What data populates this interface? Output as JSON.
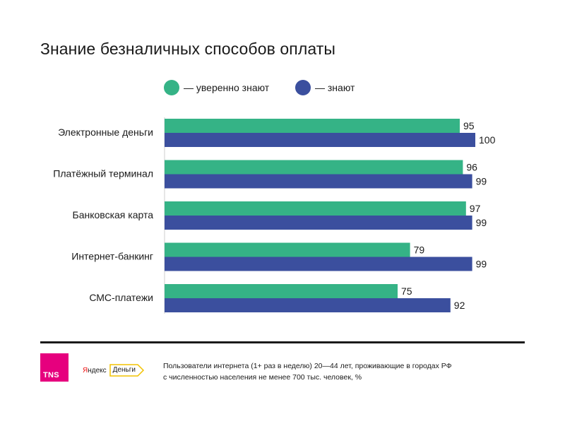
{
  "title": "Знание безналичных способов оплаты",
  "legend": [
    {
      "label": "— уверенно знают",
      "color": "#35b386"
    },
    {
      "label": "— знают",
      "color": "#3b4f9e"
    }
  ],
  "chart_data": {
    "type": "bar",
    "orientation": "horizontal",
    "title": "Знание безналичных способов оплаты",
    "categories": [
      "Электронные деньги",
      "Платёжный терминал",
      "Банковская карта",
      "Интернет-банкинг",
      "СМС-платежи"
    ],
    "series": [
      {
        "name": "— уверенно знают",
        "values": [
          95,
          96,
          97,
          79,
          75
        ],
        "color": "#35b386"
      },
      {
        "name": "— знают",
        "values": [
          100,
          99,
          99,
          99,
          92
        ],
        "color": "#3b4f9e"
      }
    ],
    "xlim": [
      0,
      100
    ],
    "grid": false,
    "legend_position": "top"
  },
  "footer": {
    "tns_logo": "TNS",
    "yandex_logo": "Яндекс",
    "dengi_logo": "Деньги",
    "note_line1": "Пользователи интернета (1+ раз в неделю) 20—44 лет, проживающие в городах РФ",
    "note_line2": "с численностью населения не менее 700 тыс. человек, %"
  }
}
